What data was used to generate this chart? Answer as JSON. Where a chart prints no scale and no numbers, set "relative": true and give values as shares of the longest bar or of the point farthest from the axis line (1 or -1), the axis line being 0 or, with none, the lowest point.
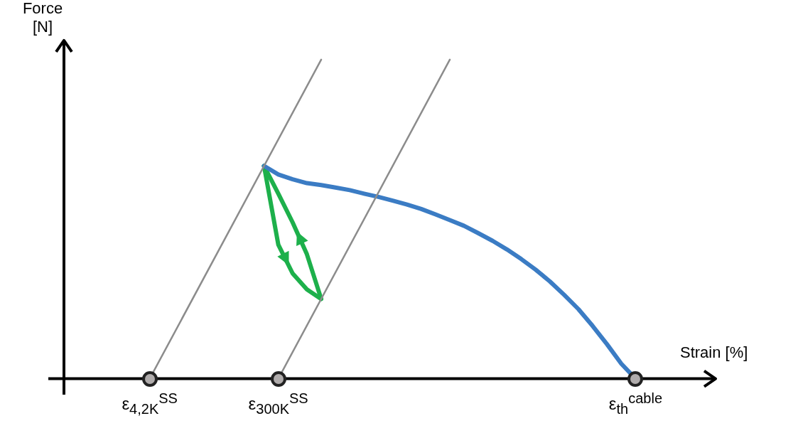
{
  "chart_data": {
    "type": "line",
    "relative": true,
    "xlabel": "Strain [%]",
    "ylabel": "Force [N]",
    "legend": false,
    "line_style": "solid",
    "categories": [
      null,
      null,
      null,
      null,
      null,
      null,
      "ε$_{4,2K}$$^{SS}$",
      null,
      null,
      null,
      null,
      null,
      null,
      null,
      null,
      "ε$_{300K}$$^{SS}$",
      null,
      null,
      null,
      null,
      null,
      null,
      null,
      null,
      null,
      null,
      null,
      null,
      null,
      null,
      null,
      null,
      null,
      null,
      null,
      null,
      null,
      null,
      null,
      null,
      "ε$_{th}$$^{cable}$",
      null,
      null,
      null,
      null,
      null
    ],
    "series": [
      {
        "color": "#8c8c8c",
        "values": [
          null,
          null,
          null,
          null,
          null,
          null,
          0,
          null,
          null,
          null,
          null,
          null,
          null,
          null,
          null,
          null,
          null,
          null,
          1,
          null,
          null,
          null,
          null,
          null,
          null,
          null,
          null,
          null,
          null,
          null,
          null,
          null,
          null,
          null,
          null,
          null,
          null,
          null,
          null,
          null,
          null,
          null,
          null,
          null,
          null,
          null
        ]
      },
      {
        "color": "#8c8c8c",
        "values": [
          null,
          null,
          null,
          null,
          null,
          null,
          null,
          null,
          null,
          null,
          null,
          null,
          null,
          null,
          null,
          0,
          null,
          null,
          null,
          null,
          null,
          null,
          null,
          null,
          null,
          null,
          null,
          1,
          null,
          null,
          null,
          null,
          null,
          null,
          null,
          null,
          null,
          null,
          null,
          null,
          null,
          null,
          null,
          null,
          null,
          null
        ]
      },
      {
        "color": "#3b7cc4",
        "values": [
          null,
          null,
          null,
          null,
          null,
          null,
          null,
          null,
          null,
          null,
          null,
          null,
          null,
          null,
          0.667,
          0.64,
          0.625,
          0.613,
          0.607,
          0.599,
          0.591,
          0.58,
          0.57,
          0.558,
          0.546,
          0.532,
          0.515,
          0.497,
          0.479,
          0.456,
          0.432,
          0.405,
          0.375,
          0.342,
          0.305,
          0.263,
          0.218,
          0.165,
          0.108,
          0.047,
          0,
          null,
          null,
          null,
          null,
          null
        ]
      },
      {
        "color": "#1db04b",
        "values": [
          null,
          null,
          null,
          null,
          null,
          null,
          null,
          null,
          null,
          null,
          null,
          null,
          null,
          null,
          0.667,
          0.42,
          0.33,
          0.28,
          0.25,
          null,
          null,
          null,
          null,
          null,
          null,
          null,
          null,
          null,
          null,
          null,
          null,
          null,
          null,
          null,
          null,
          null,
          null,
          null,
          null,
          null,
          null,
          null,
          null,
          null,
          null,
          null
        ]
      },
      {
        "color": "#1db04b",
        "values": [
          null,
          null,
          null,
          null,
          null,
          null,
          null,
          null,
          null,
          null,
          null,
          null,
          null,
          null,
          0.667,
          0.58,
          0.49,
          0.39,
          0.25,
          null,
          null,
          null,
          null,
          null,
          null,
          null,
          null,
          null,
          null,
          null,
          null,
          null,
          null,
          null,
          null,
          null,
          null,
          null,
          null,
          null,
          null,
          null,
          null,
          null,
          null,
          null
        ]
      }
    ]
  }
}
